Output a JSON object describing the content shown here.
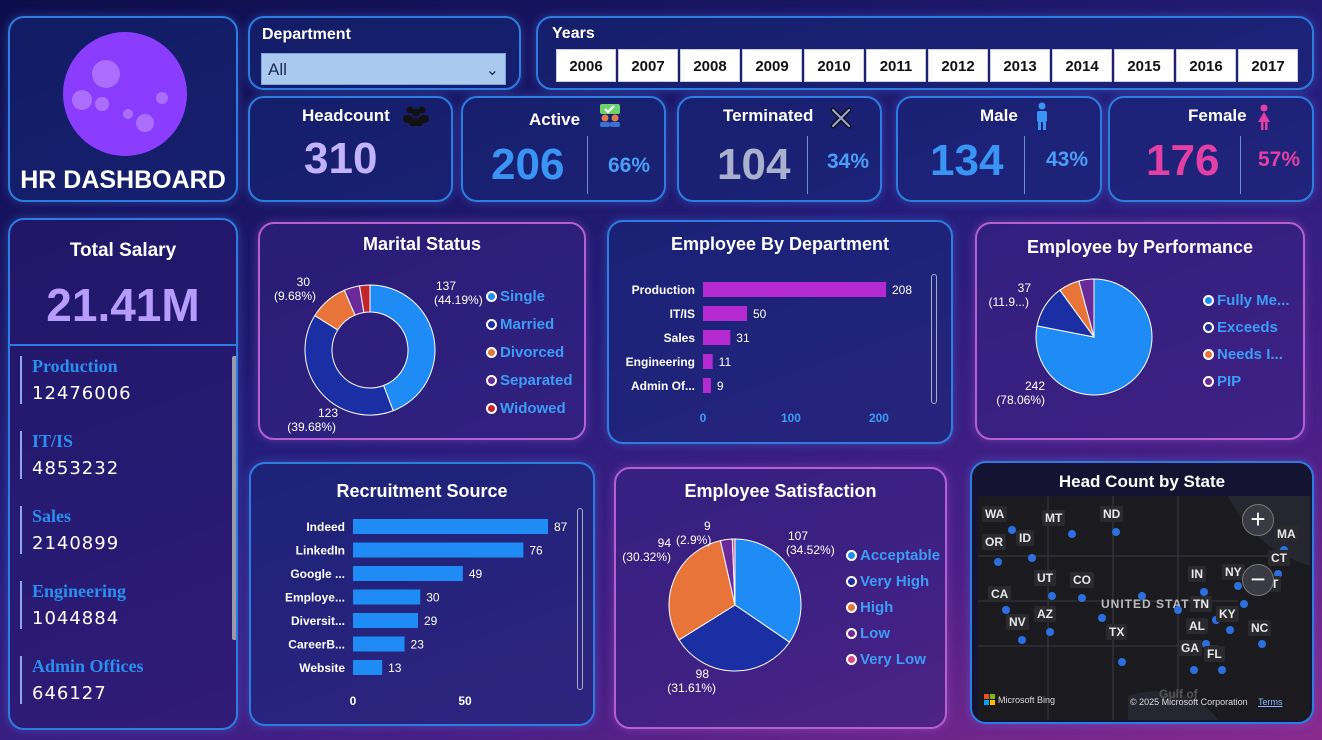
{
  "dashboard": {
    "title": "HR DASHBOARD"
  },
  "department_slicer": {
    "label": "Department",
    "value": "All"
  },
  "years_slicer": {
    "label": "Years",
    "years": [
      "2006",
      "2007",
      "2008",
      "2009",
      "2010",
      "2011",
      "2012",
      "2013",
      "2014",
      "2015",
      "2016",
      "2017"
    ]
  },
  "kpis": {
    "headcount": {
      "label": "Headcount",
      "value": "310"
    },
    "active": {
      "label": "Active",
      "value": "206",
      "pct": "66%"
    },
    "terminated": {
      "label": "Terminated",
      "value": "104",
      "pct": "34%"
    },
    "male": {
      "label": "Male",
      "value": "134",
      "pct": "43%"
    },
    "female": {
      "label": "Female",
      "value": "176",
      "pct": "57%"
    }
  },
  "salary": {
    "title": "Total Salary",
    "total": "21.41M",
    "items": [
      {
        "name": "Production",
        "amount": "12476006"
      },
      {
        "name": "IT/IS",
        "amount": "4853232"
      },
      {
        "name": "Sales",
        "amount": "2140899"
      },
      {
        "name": "Engineering",
        "amount": "1044884"
      },
      {
        "name": "Admin Offices",
        "amount": "646127"
      }
    ]
  },
  "colors": {
    "accent_blue": "#1f8cf5",
    "dark_blue": "#1a2fa3",
    "orange": "#e8743a",
    "purple": "#6a2a9a",
    "red": "#c0262b",
    "magenta_bar": "#b42ad0",
    "female_pink": "#e240a4"
  },
  "chart_data": [
    {
      "id": "marital",
      "type": "pie",
      "donut": true,
      "title": "Marital Status",
      "categories": [
        "Single",
        "Married",
        "Divorced",
        "Separated",
        "Widowed"
      ],
      "values": [
        137,
        123,
        30,
        12,
        8
      ],
      "colors": [
        "#1f8cf5",
        "#1a2fa3",
        "#e8743a",
        "#6a2a9a",
        "#c0262b"
      ],
      "data_labels": [
        {
          "value": "137",
          "pct": "(44.19%)"
        },
        {
          "value": "123",
          "pct": "(39.68%)"
        },
        {
          "value": "30",
          "pct": "(9.68%)"
        }
      ],
      "legend": "right"
    },
    {
      "id": "department",
      "type": "bar",
      "orientation": "horizontal",
      "title": "Employee By Department",
      "categories": [
        "Production",
        "IT/IS",
        "Sales",
        "Engineering",
        "Admin Of..."
      ],
      "values": [
        208,
        50,
        31,
        11,
        9
      ],
      "ticks": [
        "0",
        "100",
        "200"
      ],
      "xlim": [
        0,
        208
      ]
    },
    {
      "id": "performance",
      "type": "pie",
      "title": "Employee by Performance",
      "categories": [
        "Fully Me...",
        "Exceeds",
        "Needs I...",
        "PIP"
      ],
      "values": [
        242,
        37,
        18,
        13
      ],
      "colors": [
        "#1f8cf5",
        "#1a2fa3",
        "#e8743a",
        "#6a2a9a"
      ],
      "data_labels": [
        {
          "value": "242",
          "pct": "(78.06%)"
        },
        {
          "value": "37",
          "pct": "(11.9...)"
        }
      ],
      "legend": "right"
    },
    {
      "id": "recruitment",
      "type": "bar",
      "orientation": "horizontal",
      "title": "Recruitment Source",
      "categories": [
        "Indeed",
        "LinkedIn",
        "Google ...",
        "Employe...",
        "Diversit...",
        "CareerB...",
        "Website"
      ],
      "values": [
        87,
        76,
        49,
        30,
        29,
        23,
        13
      ],
      "ticks": [
        "0",
        "50"
      ],
      "xlim": [
        0,
        87
      ]
    },
    {
      "id": "satisfaction",
      "type": "pie",
      "title": "Employee Satisfaction",
      "categories": [
        "Acceptable",
        "Very High",
        "High",
        "Low",
        "Very Low"
      ],
      "values": [
        107,
        98,
        94,
        9,
        2
      ],
      "colors": [
        "#1f8cf5",
        "#1a2fa3",
        "#e8743a",
        "#6a2a9a",
        "#d94a8a"
      ],
      "data_labels": [
        {
          "value": "107",
          "pct": "(34.52%)"
        },
        {
          "value": "98",
          "pct": "(31.61%)"
        },
        {
          "value": "94",
          "pct": "(30.32%)"
        },
        {
          "value": "9",
          "pct": "(2.9%)"
        }
      ],
      "legend": "right"
    }
  ],
  "map": {
    "title": "Head Count by State",
    "states": [
      "WA",
      "MT",
      "ND",
      "OR",
      "ID",
      "UT",
      "CO",
      "CA",
      "NV",
      "AZ",
      "TX",
      "IN",
      "NY",
      "MA",
      "CT",
      "T",
      "TN",
      "KY",
      "AL",
      "NC",
      "GA",
      "FL"
    ],
    "country_label": "UNITED STATES",
    "water_label": "Gulf of",
    "attribution": "Microsoft Bing",
    "copyright": "© 2025 Microsoft Corporation",
    "terms": "Terms",
    "zoom_in_icon": "plus-icon",
    "zoom_out_icon": "minus-icon"
  }
}
